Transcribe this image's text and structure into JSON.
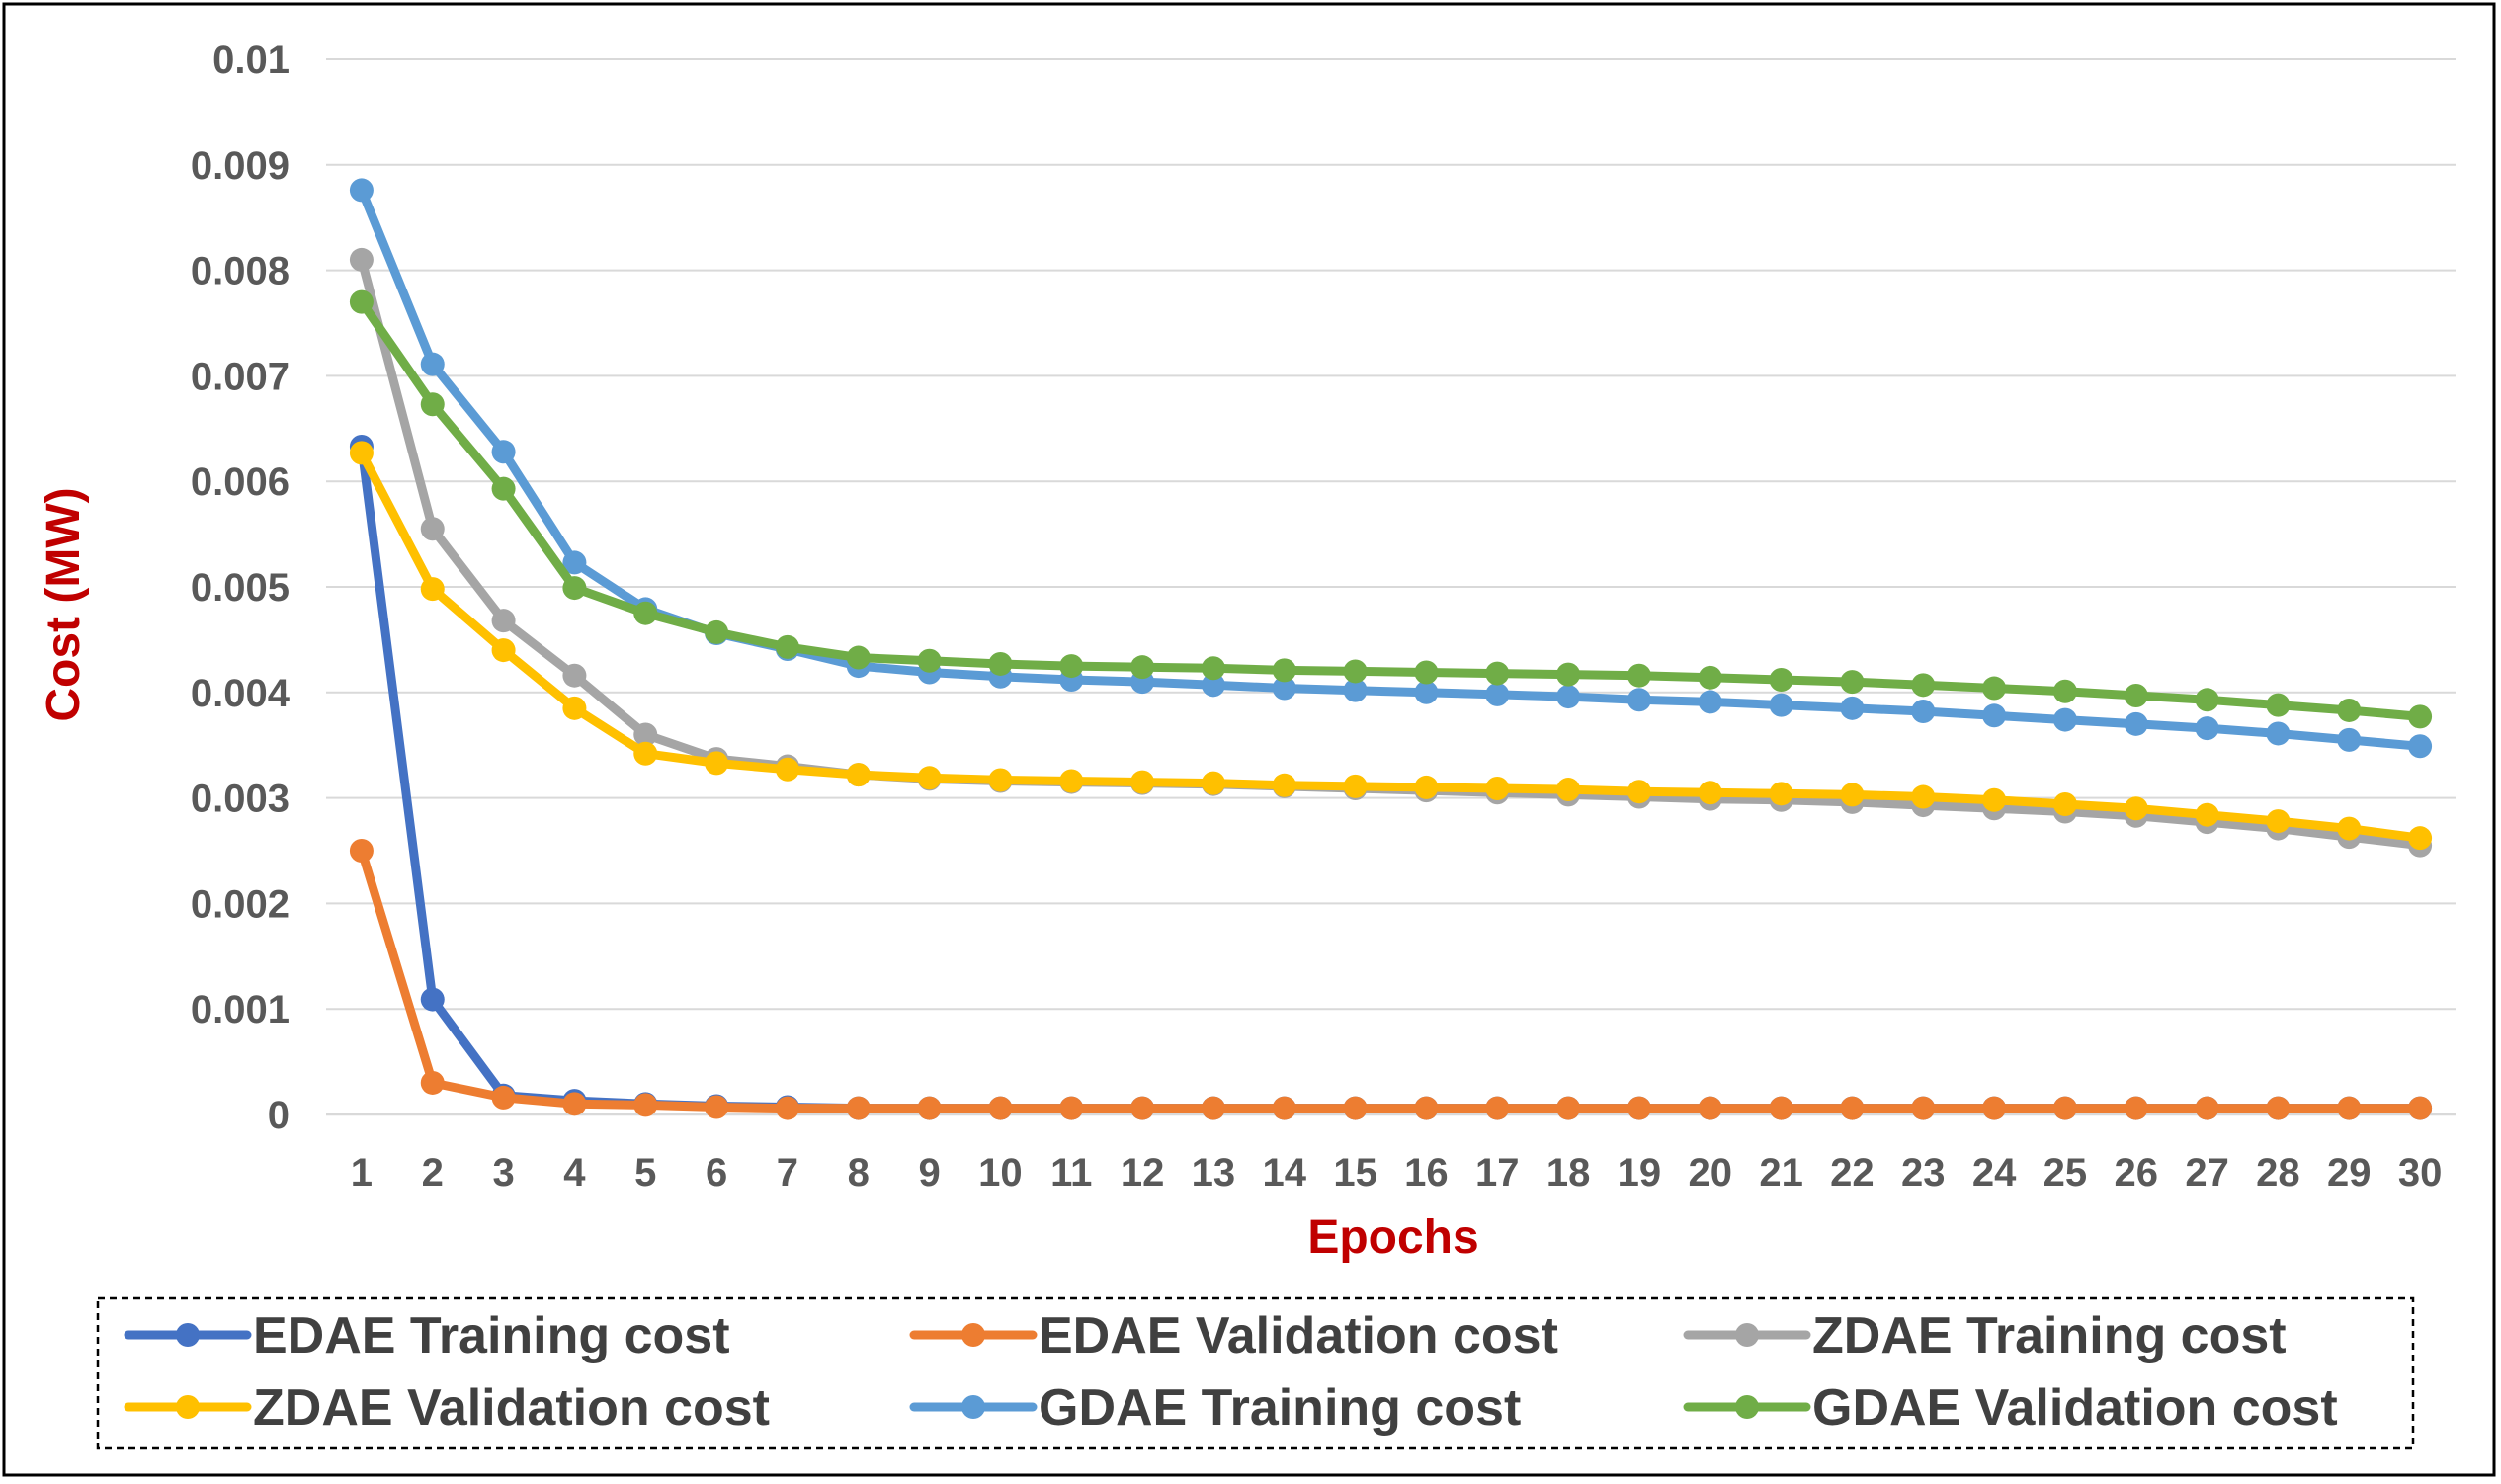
{
  "chart_data": {
    "type": "line",
    "title": "",
    "xlabel": "Epochs",
    "ylabel": "Cost (MW)",
    "x": [
      1,
      2,
      3,
      4,
      5,
      6,
      7,
      8,
      9,
      10,
      11,
      12,
      13,
      14,
      15,
      16,
      17,
      18,
      19,
      20,
      21,
      22,
      23,
      24,
      25,
      26,
      27,
      28,
      29,
      30
    ],
    "x_tick_labels": [
      "1",
      "2",
      "3",
      "4",
      "5",
      "6",
      "7",
      "8",
      "9",
      "10",
      "11",
      "12",
      "13",
      "14",
      "15",
      "16",
      "17",
      "18",
      "19",
      "20",
      "21",
      "22",
      "23",
      "24",
      "25",
      "26",
      "27",
      "28",
      "29",
      "30"
    ],
    "ylim": [
      0,
      0.01
    ],
    "y_ticks": [
      0,
      0.001,
      0.002,
      0.003,
      0.004,
      0.005,
      0.006,
      0.007,
      0.008,
      0.009,
      0.01
    ],
    "y_tick_labels": [
      "0",
      "0.001",
      "0.002",
      "0.003",
      "0.004",
      "0.005",
      "0.006",
      "0.007",
      "0.008",
      "0.009",
      "0.01"
    ],
    "grid": true,
    "legend_position": "bottom",
    "series": [
      {
        "name": "EDAE Training cost",
        "color": "#4472c4",
        "values": [
          0.00633,
          0.00109,
          0.00018,
          0.00013,
          0.0001,
          8e-05,
          7e-05,
          6e-05,
          6e-05,
          6e-05,
          6e-05,
          6e-05,
          6e-05,
          6e-05,
          6e-05,
          6e-05,
          6e-05,
          6e-05,
          6e-05,
          6e-05,
          6e-05,
          6e-05,
          6e-05,
          6e-05,
          6e-05,
          6e-05,
          6e-05,
          6e-05,
          6e-05,
          6e-05
        ]
      },
      {
        "name": "EDAE Validation cost",
        "color": "#ed7d31",
        "values": [
          0.0025,
          0.0003,
          0.00016,
          0.0001,
          9e-05,
          7e-05,
          6e-05,
          6e-05,
          6e-05,
          6e-05,
          6e-05,
          6e-05,
          6e-05,
          6e-05,
          6e-05,
          6e-05,
          6e-05,
          6e-05,
          6e-05,
          6e-05,
          6e-05,
          6e-05,
          6e-05,
          6e-05,
          6e-05,
          6e-05,
          6e-05,
          6e-05,
          6e-05,
          6e-05
        ]
      },
      {
        "name": "ZDAE Training cost",
        "color": "#a5a5a5",
        "values": [
          0.0081,
          0.00555,
          0.00468,
          0.00416,
          0.0036,
          0.00337,
          0.0033,
          0.00322,
          0.00318,
          0.00316,
          0.00315,
          0.00314,
          0.00313,
          0.00311,
          0.00309,
          0.00307,
          0.00305,
          0.00303,
          0.00301,
          0.00299,
          0.00298,
          0.00296,
          0.00293,
          0.0029,
          0.00287,
          0.00283,
          0.00277,
          0.00271,
          0.00263,
          0.00255
        ]
      },
      {
        "name": "ZDAE Validation cost",
        "color": "#ffc000",
        "values": [
          0.00627,
          0.00498,
          0.0044,
          0.00385,
          0.00342,
          0.00333,
          0.00327,
          0.00322,
          0.00319,
          0.00317,
          0.00316,
          0.00315,
          0.00314,
          0.00312,
          0.00311,
          0.0031,
          0.00309,
          0.00308,
          0.00306,
          0.00305,
          0.00304,
          0.00303,
          0.00301,
          0.00298,
          0.00294,
          0.0029,
          0.00284,
          0.00278,
          0.00271,
          0.00262
        ]
      },
      {
        "name": "GDAE Training cost",
        "color": "#5b9bd5",
        "values": [
          0.00876,
          0.00711,
          0.00628,
          0.00523,
          0.00479,
          0.00456,
          0.00441,
          0.00425,
          0.00419,
          0.00415,
          0.00412,
          0.0041,
          0.00407,
          0.00404,
          0.00402,
          0.004,
          0.00398,
          0.00396,
          0.00393,
          0.00391,
          0.00388,
          0.00385,
          0.00382,
          0.00378,
          0.00374,
          0.0037,
          0.00366,
          0.00361,
          0.00355,
          0.00349
        ]
      },
      {
        "name": "GDAE Validation cost",
        "color": "#70ad47",
        "values": [
          0.0077,
          0.00673,
          0.00593,
          0.00499,
          0.00475,
          0.00457,
          0.00443,
          0.00433,
          0.0043,
          0.00427,
          0.00425,
          0.00424,
          0.00423,
          0.00421,
          0.0042,
          0.00419,
          0.00418,
          0.00417,
          0.00416,
          0.00414,
          0.00412,
          0.0041,
          0.00407,
          0.00404,
          0.00401,
          0.00397,
          0.00393,
          0.00388,
          0.00383,
          0.00377
        ]
      }
    ]
  }
}
